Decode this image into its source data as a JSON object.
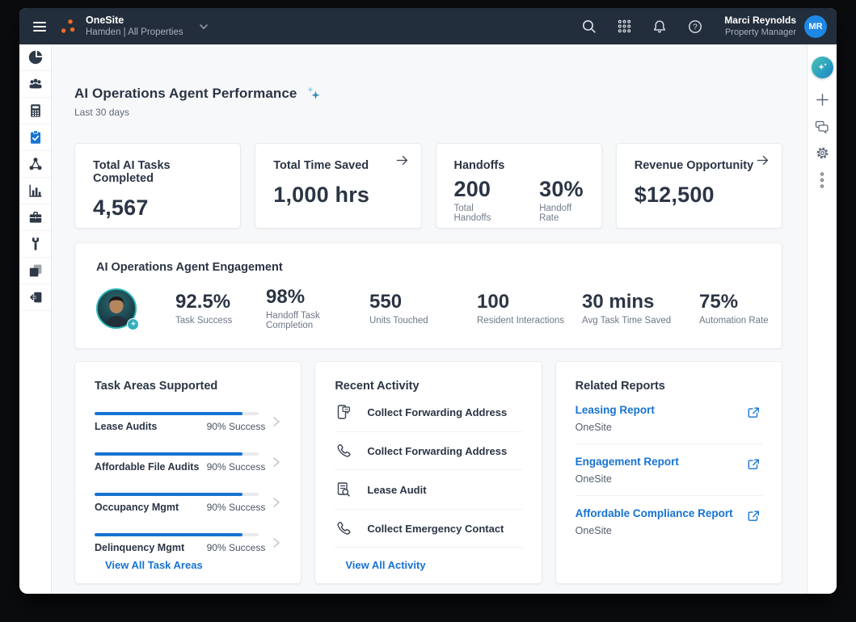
{
  "header": {
    "app_name": "OneSite",
    "context": "Hamden | All Properties",
    "icons": [
      "search",
      "app-switcher",
      "notifications",
      "help"
    ],
    "user_name": "Marci Reynolds",
    "user_role": "Property Manager",
    "avatar_initials": "MR"
  },
  "sidebar_icons": [
    "pie-chart",
    "people",
    "calculator",
    "clipboard-check-active",
    "cluster",
    "bar-chart",
    "briefcase",
    "wrench",
    "documents",
    "sign-out"
  ],
  "rail_icons": [
    "ai-assistant",
    "add",
    "conversations",
    "settings",
    "more-options"
  ],
  "page": {
    "title": "AI Operations Agent Performance",
    "subtitle": "Last 30 days"
  },
  "kpis": [
    {
      "label": "Total AI Tasks Completed",
      "value": "4,567"
    },
    {
      "label": "Total Time Saved",
      "value": "1,000 hrs"
    },
    {
      "label": "Handoffs",
      "primary": {
        "value": "200",
        "label": "Total Handoffs"
      },
      "secondary": {
        "value": "30%",
        "label": "Handoff Rate"
      }
    },
    {
      "label": "Revenue Opportunity",
      "value": "$12,500"
    }
  ],
  "engagement": {
    "title": "AI Operations Agent Engagement",
    "stats": [
      {
        "value": "92.5%",
        "label": "Task Success"
      },
      {
        "value": "98%",
        "label": "Handoff Task Completion"
      },
      {
        "value": "550",
        "label": "Units Touched"
      },
      {
        "value": "100",
        "label": "Resident Interactions"
      },
      {
        "value": "30 mins",
        "label": "Avg Task Time Saved"
      },
      {
        "value": "75%",
        "label": "Automation Rate"
      }
    ]
  },
  "task_areas": {
    "title": "Task Areas Supported",
    "items": [
      {
        "label": "Lease Audits",
        "success": "90% Success",
        "progress_pct": 90
      },
      {
        "label": "Affordable File Audits",
        "success": "90% Success",
        "progress_pct": 90
      },
      {
        "label": "Occupancy Mgmt",
        "success": "90% Success",
        "progress_pct": 90
      },
      {
        "label": "Delinquency Mgmt",
        "success": "90% Success",
        "progress_pct": 90
      }
    ],
    "view_all": "View All Task Areas"
  },
  "recent_activity": {
    "title": "Recent Activity",
    "items": [
      {
        "icon": "sms-message",
        "label": "Collect Forwarding Address"
      },
      {
        "icon": "phone-call",
        "label": "Collect Forwarding Address"
      },
      {
        "icon": "document-search",
        "label": "Lease Audit"
      },
      {
        "icon": "phone-call",
        "label": "Collect Emergency Contact"
      }
    ],
    "view_all": "View All Activity"
  },
  "related_reports": {
    "title": "Related Reports",
    "items": [
      {
        "label": "Leasing Report",
        "source": "OneSite"
      },
      {
        "label": "Engagement Report",
        "source": "OneSite"
      },
      {
        "label": "Affordable Compliance Report",
        "source": "OneSite"
      }
    ]
  },
  "colors": {
    "header_bg": "#232e3c",
    "accent_blue": "#1673d1",
    "brand_orange": "#f26b26",
    "text_dark": "#2b3545",
    "ai_gradient_start": "#4cc4b2",
    "ai_gradient_end": "#1f86c4"
  }
}
